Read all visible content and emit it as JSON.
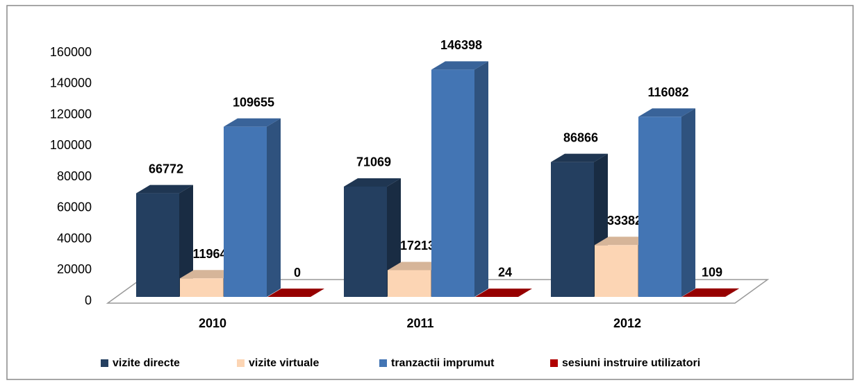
{
  "chart_data": {
    "type": "bar3d",
    "categories": [
      "2010",
      "2011",
      "2012"
    ],
    "series": [
      {
        "name": "vizite directe",
        "color": "#243f60",
        "values": [
          66772,
          71069,
          86866
        ]
      },
      {
        "name": "vizite virtuale",
        "color": "#fcd5b4",
        "values": [
          11964,
          17213,
          33382
        ]
      },
      {
        "name": "tranzactii imprumut",
        "color": "#4375b4",
        "values": [
          109655,
          146398,
          116082
        ]
      },
      {
        "name": "sesiuni instruire utilizatori",
        "color": "#b00000",
        "values": [
          0,
          24,
          109
        ]
      }
    ],
    "ylim": [
      0,
      160000
    ],
    "yticks": [
      0,
      20000,
      40000,
      60000,
      80000,
      100000,
      120000,
      140000,
      160000
    ],
    "grid": false,
    "legend": "bottom"
  }
}
